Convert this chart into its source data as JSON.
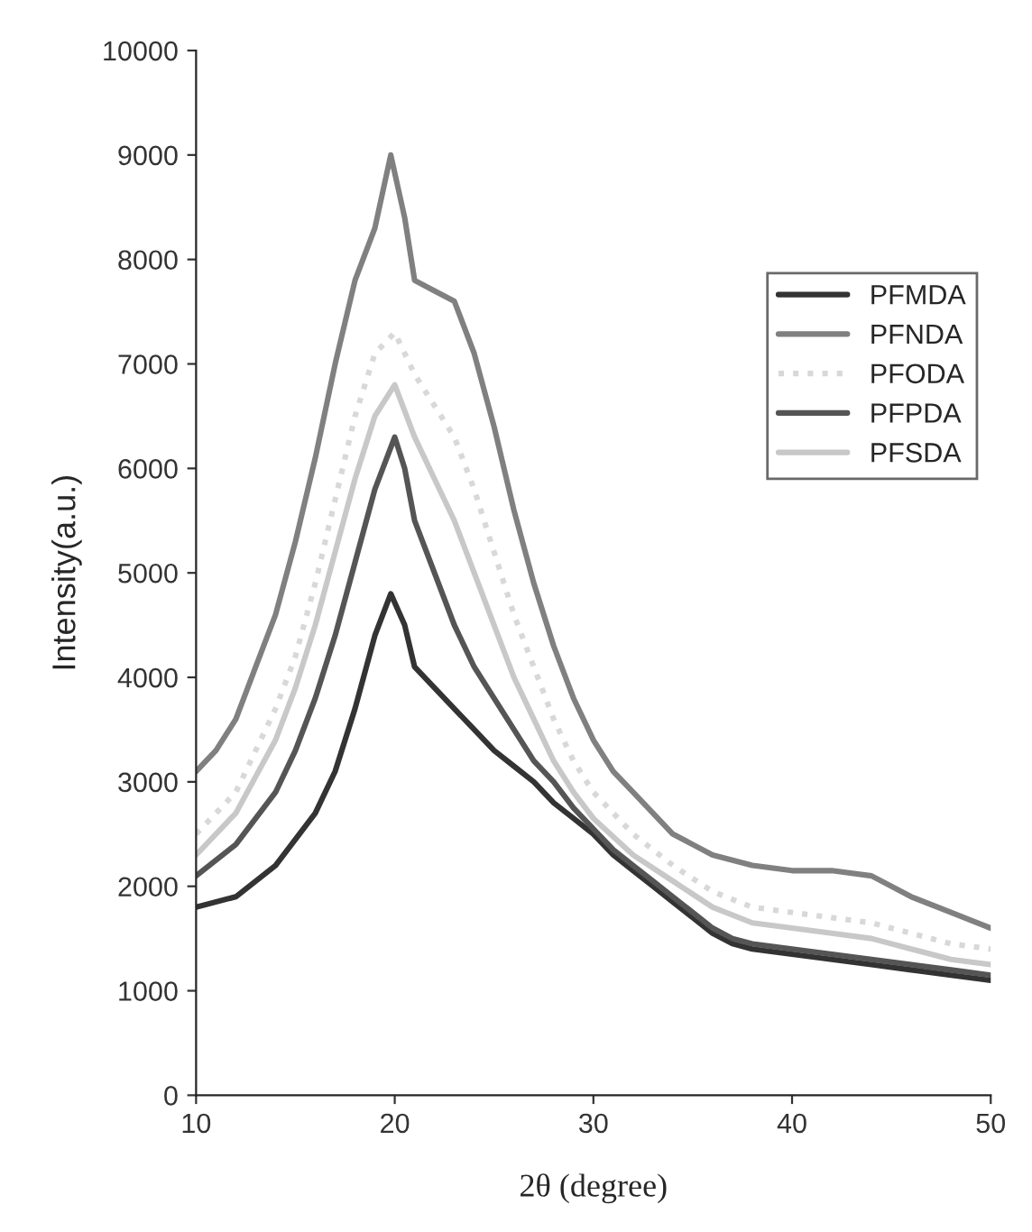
{
  "chart_data": {
    "type": "line",
    "xlabel": "2θ (degree)",
    "ylabel": "Intensity(a.u.)",
    "xlim": [
      10,
      50
    ],
    "xticks": [
      10,
      20,
      30,
      40,
      50
    ],
    "ylim": [
      0,
      10000
    ],
    "yticks": [
      0,
      1000,
      2000,
      3000,
      4000,
      5000,
      6000,
      7000,
      8000,
      9000,
      10000
    ],
    "grid": false,
    "legend": "top right",
    "marker": "none",
    "series": [
      {
        "name": "PFMDA",
        "color": "#333333",
        "line_style": "solid",
        "x": [
          10,
          12,
          14,
          16,
          17,
          18,
          19,
          19.8,
          20.5,
          21,
          22,
          23,
          24,
          25,
          26,
          27,
          28,
          29,
          30,
          31,
          32,
          33,
          34,
          35,
          36,
          37,
          38,
          40,
          42,
          44,
          46,
          48,
          50
        ],
        "values": [
          1800,
          1900,
          2200,
          2700,
          3100,
          3700,
          4400,
          4800,
          4500,
          4100,
          3900,
          3700,
          3500,
          3300,
          3150,
          3000,
          2800,
          2650,
          2500,
          2300,
          2150,
          2000,
          1850,
          1700,
          1550,
          1450,
          1400,
          1350,
          1300,
          1250,
          1200,
          1150,
          1100
        ]
      },
      {
        "name": "PFNDA",
        "color": "#808080",
        "line_style": "solid",
        "x": [
          10,
          11,
          12,
          13,
          14,
          15,
          16,
          17,
          18,
          19,
          19.8,
          20.5,
          21,
          22,
          23,
          24,
          25,
          26,
          27,
          28,
          29,
          30,
          31,
          32,
          33,
          34,
          35,
          36,
          38,
          40,
          42,
          44,
          46,
          48,
          50
        ],
        "values": [
          3100,
          3300,
          3600,
          4100,
          4600,
          5300,
          6100,
          7000,
          7800,
          8300,
          9000,
          8400,
          7800,
          7700,
          7600,
          7100,
          6400,
          5600,
          4900,
          4300,
          3800,
          3400,
          3100,
          2900,
          2700,
          2500,
          2400,
          2300,
          2200,
          2150,
          2150,
          2100,
          1900,
          1750,
          1600
        ]
      },
      {
        "name": "PFODA",
        "color": "#d8d8d8",
        "line_style": "dotted",
        "x": [
          10,
          12,
          14,
          15,
          16,
          17,
          18,
          19,
          20,
          21,
          22,
          23,
          24,
          25,
          26,
          27,
          28,
          29,
          30,
          32,
          34,
          36,
          38,
          40,
          42,
          44,
          46,
          48,
          50
        ],
        "values": [
          2500,
          2900,
          3700,
          4200,
          4900,
          5700,
          6500,
          7100,
          7300,
          6900,
          6600,
          6300,
          5800,
          5200,
          4600,
          4100,
          3600,
          3200,
          2900,
          2500,
          2200,
          1950,
          1800,
          1750,
          1700,
          1650,
          1550,
          1450,
          1400
        ]
      },
      {
        "name": "PFPDA",
        "color": "#555555",
        "line_style": "solid",
        "x": [
          10,
          12,
          14,
          15,
          16,
          17,
          18,
          19,
          20,
          20.5,
          21,
          22,
          23,
          24,
          25,
          26,
          27,
          28,
          29,
          30,
          31,
          32,
          33,
          34,
          35,
          36,
          37,
          38,
          40,
          42,
          44,
          46,
          48,
          50
        ],
        "values": [
          2100,
          2400,
          2900,
          3300,
          3800,
          4400,
          5100,
          5800,
          6300,
          6000,
          5500,
          5000,
          4500,
          4100,
          3800,
          3500,
          3200,
          3000,
          2750,
          2550,
          2350,
          2200,
          2050,
          1900,
          1750,
          1600,
          1500,
          1450,
          1400,
          1350,
          1300,
          1250,
          1200,
          1150
        ]
      },
      {
        "name": "PFSDA",
        "color": "#c8c8c8",
        "line_style": "solid",
        "x": [
          10,
          12,
          14,
          15,
          16,
          17,
          18,
          19,
          20,
          21,
          22,
          23,
          24,
          25,
          26,
          27,
          28,
          29,
          30,
          32,
          34,
          36,
          38,
          40,
          42,
          44,
          46,
          48,
          50
        ],
        "values": [
          2300,
          2700,
          3400,
          3900,
          4500,
          5200,
          5900,
          6500,
          6800,
          6300,
          5900,
          5500,
          5000,
          4500,
          4000,
          3600,
          3200,
          2900,
          2650,
          2300,
          2050,
          1800,
          1650,
          1600,
          1550,
          1500,
          1400,
          1300,
          1250
        ]
      }
    ]
  }
}
